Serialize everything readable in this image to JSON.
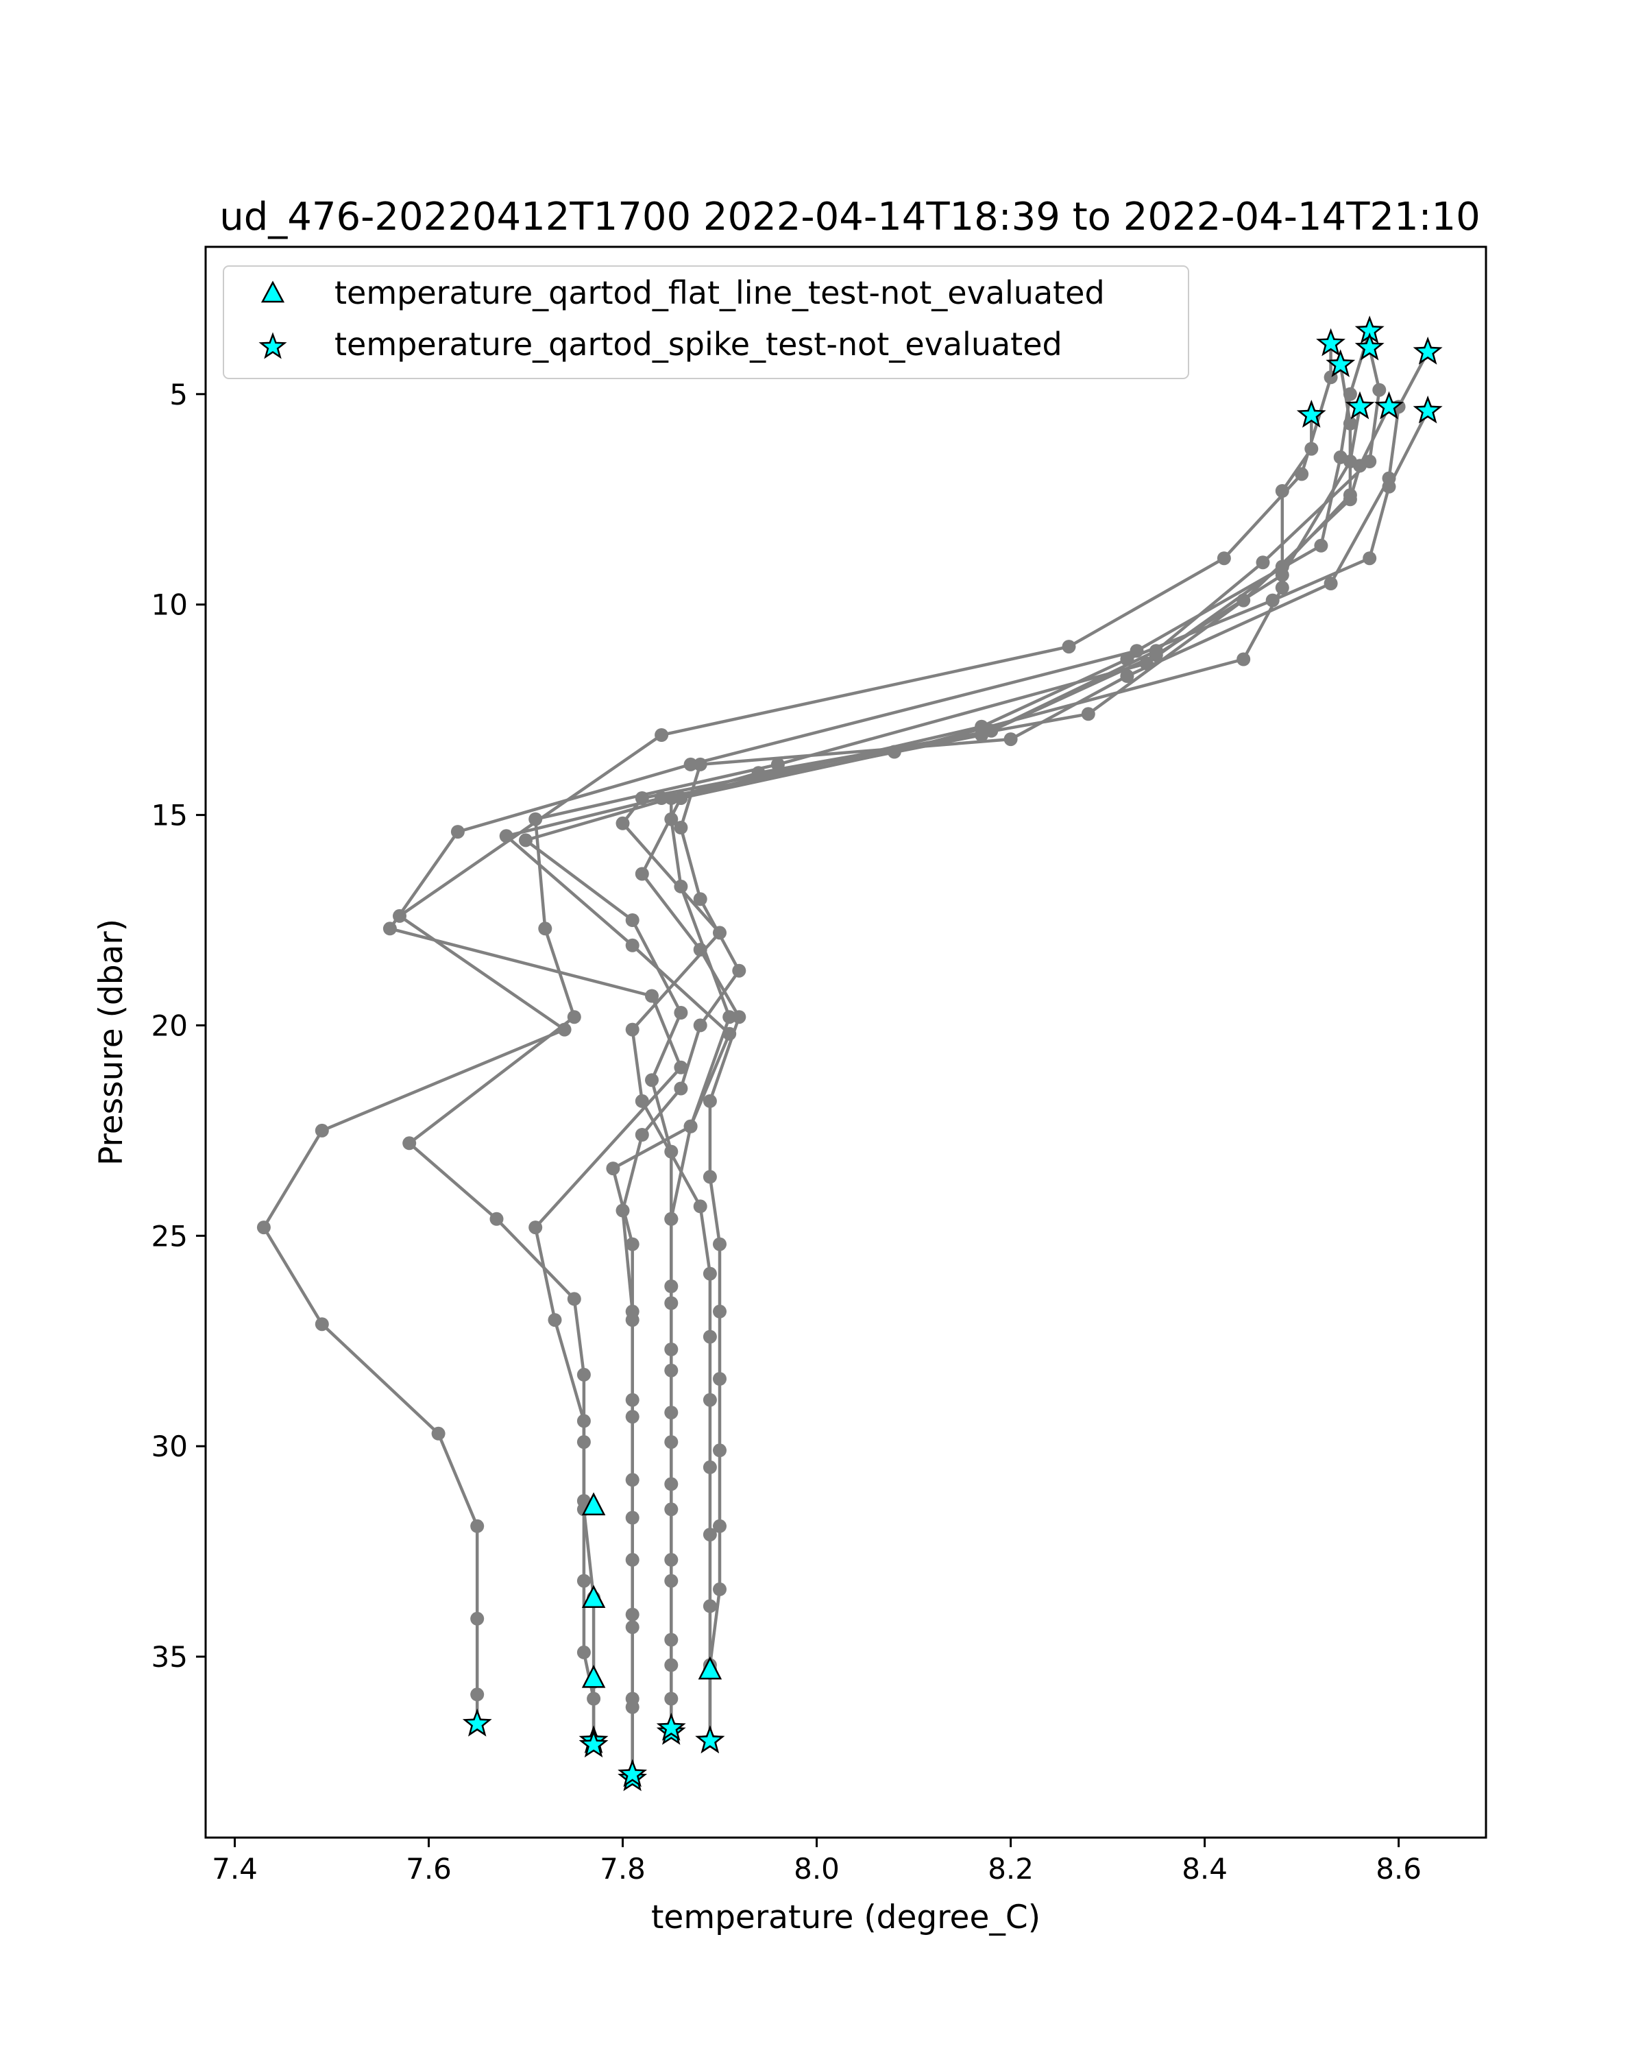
{
  "chart_data": {
    "type": "line",
    "title": "ud_476-20220412T1700 2022-04-14T18:39 to 2022-04-14T21:10",
    "xlabel": "temperature (degree_C)",
    "ylabel": "Pressure (dbar)",
    "xlim": [
      7.37,
      8.69
    ],
    "ylim": [
      39.3,
      1.5
    ],
    "y_inverted": true,
    "grid": false,
    "legend_position": "upper-left",
    "x_ticks": [
      "7.4",
      "7.6",
      "7.8",
      "8.0",
      "8.2",
      "8.4",
      "8.6"
    ],
    "y_ticks": [
      "5",
      "10",
      "15",
      "20",
      "25",
      "30",
      "35"
    ],
    "x_tick_values": [
      7.4,
      7.6,
      7.8,
      8.0,
      8.2,
      8.4,
      8.6
    ],
    "y_tick_values": [
      5,
      10,
      15,
      20,
      25,
      30,
      35
    ],
    "profile_color": "#808080",
    "marker_fill": "#00ffff",
    "marker_edge": "#000000",
    "profiles": [
      [
        [
          8.53,
          3.8
        ],
        [
          8.53,
          4.6
        ],
        [
          8.5,
          6.9
        ],
        [
          8.42,
          8.9
        ],
        [
          8.26,
          11.0
        ],
        [
          7.84,
          13.1
        ],
        [
          7.57,
          17.4
        ],
        [
          7.74,
          20.1
        ],
        [
          7.49,
          22.5
        ],
        [
          7.43,
          24.8
        ],
        [
          7.49,
          27.1
        ],
        [
          7.61,
          29.7
        ],
        [
          7.65,
          31.9
        ],
        [
          7.65,
          34.1
        ],
        [
          7.65,
          35.9
        ],
        [
          7.65,
          36.6
        ]
      ],
      [
        [
          8.57,
          3.5
        ],
        [
          8.55,
          5.0
        ],
        [
          8.54,
          6.5
        ],
        [
          8.52,
          8.6
        ],
        [
          8.33,
          11.1
        ],
        [
          7.87,
          13.8
        ],
        [
          7.63,
          15.4
        ],
        [
          7.56,
          17.7
        ],
        [
          7.83,
          19.3
        ],
        [
          7.86,
          21.0
        ],
        [
          7.71,
          24.8
        ],
        [
          7.73,
          27.0
        ],
        [
          7.76,
          29.4
        ],
        [
          7.76,
          31.5
        ],
        [
          7.77,
          33.6
        ],
        [
          7.77,
          35.6
        ],
        [
          7.77,
          37.0
        ]
      ],
      [
        [
          8.54,
          4.3
        ],
        [
          8.55,
          5.7
        ],
        [
          8.55,
          7.4
        ],
        [
          8.48,
          9.1
        ],
        [
          8.34,
          11.4
        ],
        [
          7.96,
          13.8
        ],
        [
          7.71,
          15.1
        ],
        [
          7.72,
          17.7
        ],
        [
          7.75,
          19.8
        ],
        [
          7.58,
          22.8
        ],
        [
          7.67,
          24.6
        ],
        [
          7.75,
          26.5
        ],
        [
          7.76,
          28.3
        ],
        [
          7.76,
          29.9
        ],
        [
          7.76,
          31.3
        ],
        [
          7.76,
          33.2
        ],
        [
          7.76,
          34.9
        ],
        [
          7.77,
          36.0
        ],
        [
          7.77,
          37.1
        ]
      ],
      [
        [
          8.57,
          3.9
        ],
        [
          8.58,
          4.9
        ],
        [
          8.57,
          6.6
        ],
        [
          8.46,
          9.0
        ],
        [
          8.35,
          11.1
        ],
        [
          8.17,
          13.1
        ],
        [
          7.84,
          14.6
        ],
        [
          7.68,
          15.5
        ],
        [
          7.81,
          18.1
        ],
        [
          7.91,
          20.2
        ],
        [
          7.87,
          22.4
        ],
        [
          7.79,
          23.4
        ],
        [
          7.81,
          25.2
        ],
        [
          7.81,
          27.0
        ],
        [
          7.81,
          28.9
        ],
        [
          7.81,
          30.8
        ],
        [
          7.81,
          32.7
        ],
        [
          7.81,
          34.3
        ],
        [
          7.81,
          36.0
        ],
        [
          7.81,
          37.9
        ]
      ],
      [
        [
          8.63,
          4.0
        ],
        [
          8.6,
          5.3
        ],
        [
          8.59,
          7.0
        ],
        [
          8.53,
          9.5
        ],
        [
          8.32,
          11.7
        ],
        [
          8.2,
          13.2
        ],
        [
          7.88,
          13.8
        ],
        [
          7.86,
          15.3
        ],
        [
          7.88,
          17.0
        ],
        [
          7.92,
          18.7
        ],
        [
          7.88,
          20.0
        ],
        [
          7.86,
          21.5
        ],
        [
          7.82,
          22.6
        ],
        [
          7.8,
          24.4
        ],
        [
          7.81,
          26.8
        ],
        [
          7.81,
          29.3
        ],
        [
          7.81,
          31.7
        ],
        [
          7.81,
          34.0
        ],
        [
          7.81,
          36.2
        ],
        [
          7.81,
          37.8
        ]
      ],
      [
        [
          8.59,
          5.3
        ],
        [
          8.56,
          6.7
        ],
        [
          8.55,
          7.5
        ],
        [
          8.44,
          9.9
        ],
        [
          8.28,
          12.6
        ],
        [
          7.94,
          14.0
        ],
        [
          7.7,
          15.6
        ],
        [
          7.81,
          17.5
        ],
        [
          7.86,
          19.7
        ],
        [
          7.83,
          21.3
        ],
        [
          7.85,
          23.0
        ],
        [
          7.85,
          24.6
        ],
        [
          7.85,
          26.2
        ],
        [
          7.85,
          27.7
        ],
        [
          7.85,
          29.2
        ],
        [
          7.85,
          30.9
        ],
        [
          7.85,
          32.7
        ],
        [
          7.85,
          34.6
        ],
        [
          7.85,
          36.0
        ],
        [
          7.85,
          36.8
        ]
      ],
      [
        [
          8.63,
          5.4
        ],
        [
          8.59,
          7.2
        ],
        [
          8.57,
          8.9
        ],
        [
          8.47,
          9.9
        ],
        [
          8.32,
          11.3
        ],
        [
          8.17,
          12.9
        ],
        [
          7.85,
          14.6
        ],
        [
          7.85,
          15.1
        ],
        [
          7.86,
          16.7
        ],
        [
          7.91,
          19.8
        ],
        [
          7.87,
          22.4
        ],
        [
          7.85,
          24.6
        ],
        [
          7.85,
          26.6
        ],
        [
          7.85,
          28.2
        ],
        [
          7.85,
          29.9
        ],
        [
          7.85,
          31.5
        ],
        [
          7.85,
          33.2
        ],
        [
          7.85,
          35.2
        ],
        [
          7.85,
          36.7
        ]
      ],
      [
        [
          8.56,
          5.3
        ],
        [
          8.55,
          6.6
        ],
        [
          8.48,
          9.3
        ],
        [
          8.35,
          11.2
        ],
        [
          8.18,
          13.0
        ],
        [
          7.82,
          14.6
        ],
        [
          7.8,
          15.2
        ],
        [
          7.9,
          17.8
        ],
        [
          7.81,
          20.1
        ],
        [
          7.82,
          21.8
        ],
        [
          7.88,
          24.3
        ],
        [
          7.89,
          25.9
        ],
        [
          7.89,
          27.4
        ],
        [
          7.89,
          28.9
        ],
        [
          7.89,
          30.5
        ],
        [
          7.89,
          32.1
        ],
        [
          7.89,
          33.8
        ],
        [
          7.89,
          35.3
        ],
        [
          7.89,
          37.0
        ]
      ],
      [
        [
          8.51,
          5.5
        ],
        [
          8.51,
          6.3
        ],
        [
          8.48,
          7.3
        ],
        [
          8.48,
          9.6
        ],
        [
          8.44,
          11.3
        ],
        [
          8.08,
          13.5
        ],
        [
          7.86,
          14.6
        ],
        [
          7.82,
          16.4
        ],
        [
          7.88,
          18.2
        ],
        [
          7.92,
          19.8
        ],
        [
          7.89,
          21.8
        ],
        [
          7.89,
          23.6
        ],
        [
          7.9,
          25.2
        ],
        [
          7.9,
          26.8
        ],
        [
          7.9,
          28.4
        ],
        [
          7.9,
          30.1
        ],
        [
          7.9,
          31.9
        ],
        [
          7.9,
          33.4
        ],
        [
          7.89,
          35.2
        ],
        [
          7.89,
          37.0
        ]
      ]
    ],
    "series": [
      {
        "name": "temperature_qartod_flat_line_test-not_evaluated",
        "marker": "triangle",
        "points": [
          [
            7.77,
            31.4
          ],
          [
            7.77,
            33.6
          ],
          [
            7.77,
            35.5
          ],
          [
            7.89,
            35.3
          ]
        ]
      },
      {
        "name": "temperature_qartod_spike_test-not_evaluated",
        "marker": "star",
        "points": [
          [
            8.53,
            3.8
          ],
          [
            8.57,
            3.5
          ],
          [
            8.54,
            4.3
          ],
          [
            8.57,
            3.9
          ],
          [
            8.63,
            4.0
          ],
          [
            8.59,
            5.3
          ],
          [
            8.63,
            5.4
          ],
          [
            8.56,
            5.3
          ],
          [
            8.51,
            5.5
          ],
          [
            7.65,
            36.6
          ],
          [
            7.77,
            37.0
          ],
          [
            7.77,
            37.1
          ],
          [
            7.81,
            37.9
          ],
          [
            7.81,
            37.8
          ],
          [
            7.85,
            36.8
          ],
          [
            7.85,
            36.7
          ],
          [
            7.89,
            37.0
          ],
          [
            7.89,
            37.0
          ]
        ]
      }
    ]
  }
}
